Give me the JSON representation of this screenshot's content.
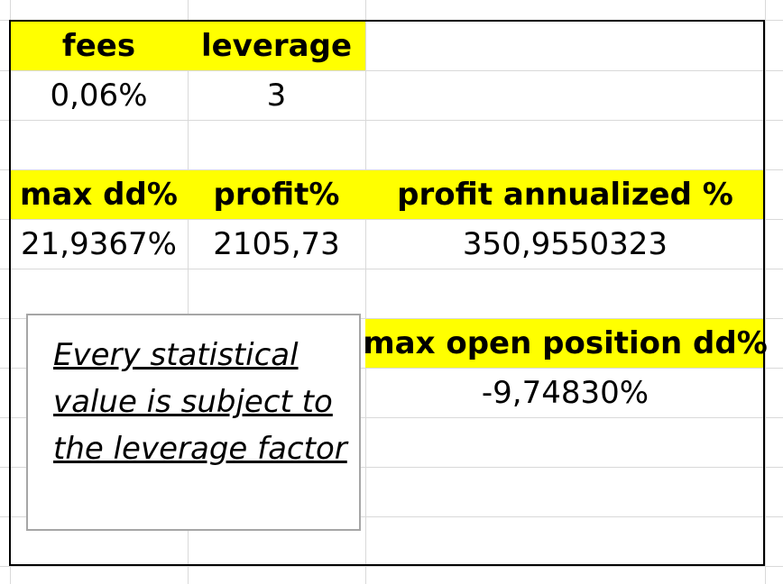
{
  "stats": {
    "fees": {
      "label": "fees",
      "value": "0,06%"
    },
    "leverage": {
      "label": "leverage",
      "value": "3"
    },
    "max_dd": {
      "label": "max dd%",
      "value": "21,9367%"
    },
    "profit": {
      "label": "profit%",
      "value": "2105,73"
    },
    "profit_annualized": {
      "label": "profit annualized %",
      "value": "350,9550323"
    },
    "max_open_position_dd": {
      "label": "max open position dd%",
      "value": "-9,74830%"
    }
  },
  "note": {
    "text": "Every statistical value is subject to the leverage factor"
  },
  "colors": {
    "header_fill": "#ffff00",
    "gridline": "#d9d9d9",
    "note_border": "#a6a6a6"
  }
}
